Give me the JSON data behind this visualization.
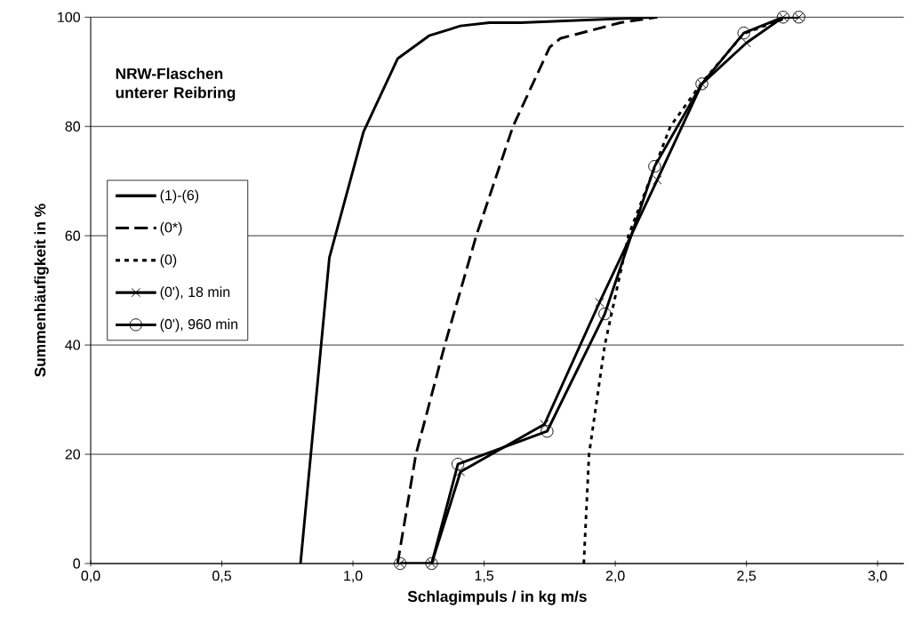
{
  "chart_data": {
    "type": "line",
    "xlabel": "Schlagimpuls / in kg m/s",
    "ylabel": "Summenhäufigkeit in %",
    "annotations": [
      "NRW-Flaschen unterer Reibring"
    ],
    "xlim": [
      0,
      3.1
    ],
    "ylim": [
      0,
      100
    ],
    "xticks": [
      {
        "value": 0,
        "label": "0,0"
      },
      {
        "value": 0.5,
        "label": "0,5"
      },
      {
        "value": 1,
        "label": "1,0"
      },
      {
        "value": 1.5,
        "label": "1,5"
      },
      {
        "value": 2,
        "label": "2,0"
      },
      {
        "value": 2.5,
        "label": "2,5"
      },
      {
        "value": 3,
        "label": "3,0"
      }
    ],
    "yticks": [
      0,
      20,
      40,
      60,
      80,
      100
    ],
    "grid": "y",
    "legend": "left",
    "series": [
      {
        "name": "(1)-(6)",
        "color": "#000000",
        "line_style": "solid",
        "marker": "none",
        "x": [
          0.8,
          0.91,
          1.04,
          1.17,
          1.29,
          1.41,
          1.52,
          1.64,
          2.16
        ],
        "values": [
          0,
          56,
          79,
          92.4,
          96.6,
          98.4,
          99,
          99,
          100
        ]
      },
      {
        "name": "(0*)",
        "color": "#000000",
        "line_style": "dashed",
        "marker": "none",
        "x": [
          1.17,
          1.24,
          1.35,
          1.47,
          1.61,
          1.75,
          1.79,
          2.02,
          2.16
        ],
        "values": [
          0,
          20,
          40,
          60,
          80,
          94.5,
          96.1,
          99,
          100
        ]
      },
      {
        "name": "(0)",
        "color": "#000000",
        "line_style": "dotted",
        "marker": "none",
        "x": [
          1.88,
          1.9,
          1.96,
          2.05,
          2.21,
          2.33,
          2.49,
          2.66
        ],
        "values": [
          0,
          20,
          40,
          60,
          80,
          88,
          97,
          100
        ]
      },
      {
        "name": "(0'), 18 min",
        "color": "#000000",
        "line_style": "solid",
        "marker": "cross",
        "x": [
          1.18,
          1.3,
          1.41,
          1.73,
          1.94,
          2.16,
          2.33,
          2.5,
          2.64,
          2.7
        ],
        "values": [
          0,
          0,
          16.8,
          25.5,
          47.8,
          70.2,
          87.8,
          95.3,
          100,
          100
        ]
      },
      {
        "name": "(0'), 960 min",
        "color": "#000000",
        "line_style": "solid",
        "marker": "circle",
        "x": [
          1.18,
          1.3,
          1.4,
          1.74,
          1.96,
          2.15,
          2.33,
          2.49,
          2.64,
          2.7
        ],
        "values": [
          0,
          0,
          18.2,
          24.2,
          45.7,
          72.7,
          87.8,
          97.1,
          100,
          100
        ]
      }
    ]
  }
}
